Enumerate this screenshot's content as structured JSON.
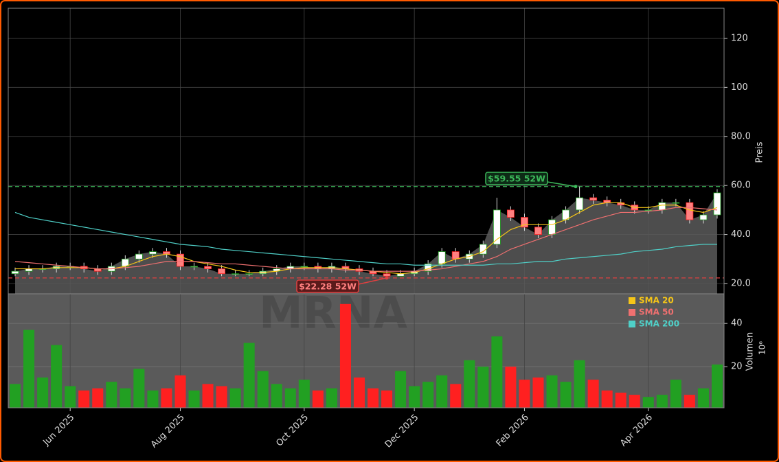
{
  "chart_data": {
    "type": "candlestick",
    "watermark": "MRNA",
    "y_label": "Preis",
    "y2_label": "Volumen",
    "y2_scale_label": "10⁶",
    "categories": [
      null,
      null,
      null,
      null,
      "Jun 2025",
      null,
      null,
      null,
      null,
      null,
      null,
      null,
      "Aug 2025",
      null,
      null,
      null,
      null,
      null,
      null,
      null,
      null,
      "Oct 2025",
      null,
      null,
      null,
      null,
      null,
      null,
      null,
      "Dec 2025",
      null,
      null,
      null,
      null,
      null,
      null,
      null,
      "Feb 2026",
      null,
      null,
      null,
      null,
      null,
      null,
      null,
      null,
      "Apr 2026",
      null,
      null,
      null,
      null,
      null
    ],
    "open": [
      24,
      25,
      26,
      26,
      27,
      27,
      26,
      25,
      27,
      30,
      32,
      33,
      32,
      27,
      27,
      26,
      24,
      24,
      24,
      25,
      26,
      27,
      27,
      26,
      27,
      26,
      25,
      24,
      23,
      24,
      25,
      28,
      33,
      30,
      32,
      36,
      50,
      47,
      43,
      40,
      46,
      50,
      55,
      54,
      53,
      52,
      50,
      50,
      53,
      53,
      46,
      48
    ],
    "high": [
      26.5,
      27.5,
      27.5,
      28.5,
      28.5,
      28.5,
      27.5,
      28.5,
      31.5,
      33.5,
      34.5,
      34.5,
      33.5,
      28.5,
      28.5,
      27.5,
      25.5,
      25.5,
      26.5,
      27.5,
      28.5,
      28.5,
      28.5,
      28.5,
      28.5,
      27.5,
      26.5,
      25.5,
      25.5,
      26.5,
      29.5,
      34.5,
      34.5,
      33.5,
      37.5,
      55,
      51.5,
      48.5,
      44.5,
      47.5,
      51.5,
      59.55,
      56.5,
      55.5,
      54.5,
      53.5,
      51.5,
      54.5,
      54.5,
      54.5,
      49.5,
      58.5
    ],
    "low": [
      23,
      23.5,
      24.5,
      24.5,
      25.5,
      24.5,
      23.5,
      23.5,
      25.5,
      28.5,
      30.5,
      30.5,
      25.5,
      25.5,
      24.5,
      23,
      23,
      23,
      23,
      23.5,
      24.5,
      25.5,
      24.5,
      24.5,
      24.5,
      23.5,
      23,
      22.28,
      23,
      23,
      23.5,
      26.5,
      28.5,
      28.5,
      30.5,
      34.5,
      45.5,
      41.5,
      38.5,
      38.5,
      44.5,
      48.5,
      52.5,
      51.5,
      50.5,
      48.5,
      48.5,
      48.5,
      51.5,
      44.5,
      44.5,
      46.5
    ],
    "close": [
      25,
      26,
      26,
      27,
      27,
      26,
      25,
      27,
      30,
      32,
      33,
      32,
      27,
      27,
      26,
      24,
      24,
      24,
      25,
      26,
      27,
      27,
      26,
      27,
      26,
      25,
      24,
      23,
      24,
      25,
      28,
      33,
      30,
      32,
      36,
      50,
      47,
      43,
      40,
      46,
      50,
      55,
      54,
      53,
      52,
      50,
      50,
      53,
      53,
      46,
      48,
      57
    ],
    "volume": [
      12,
      37,
      15,
      30,
      11,
      9,
      10,
      13,
      10,
      19,
      9,
      10,
      16,
      9,
      12,
      11,
      10,
      31,
      18,
      12,
      10,
      14,
      9,
      10,
      49,
      15,
      10,
      9,
      18,
      11,
      13,
      16,
      12,
      23,
      20,
      34,
      20,
      14,
      15,
      16,
      13,
      23,
      14,
      9,
      8,
      7,
      6,
      7,
      14,
      7,
      10,
      21
    ],
    "up_color": "#22a022",
    "down_color": "#ff2020",
    "area_color": "#5a5a5a",
    "series": [
      {
        "name": "SMA 20",
        "color": "#f5c518",
        "values": [
          26,
          26,
          26,
          26.5,
          26.5,
          26.5,
          26,
          26,
          27,
          29,
          31,
          32,
          31,
          29,
          28,
          27,
          25.5,
          24.5,
          24.5,
          25,
          26,
          26.5,
          26.5,
          26.5,
          26,
          25.5,
          25,
          24.5,
          24,
          24.5,
          26,
          28,
          30,
          31,
          33,
          38,
          42,
          44,
          44,
          44,
          46,
          49,
          52,
          53,
          53,
          51,
          51,
          52,
          52,
          50,
          49,
          51
        ]
      },
      {
        "name": "SMA 50",
        "color": "#f07070",
        "values": [
          29,
          28.5,
          28,
          27.5,
          27,
          26.5,
          26,
          26,
          26.5,
          27,
          28,
          29,
          29,
          29,
          28.5,
          28,
          28,
          27.5,
          27,
          26.5,
          26,
          26,
          26,
          26,
          25.5,
          25.5,
          25,
          25,
          25,
          25,
          25.5,
          26,
          27,
          28,
          29,
          31,
          34,
          36,
          38,
          40,
          42,
          44,
          46,
          47.5,
          49,
          49,
          49.5,
          50,
          51,
          51,
          50.5,
          50
        ]
      },
      {
        "name": "SMA 200",
        "color": "#4fd0c8",
        "values": [
          49,
          47,
          46,
          45,
          44,
          43,
          42,
          41,
          40,
          39,
          38,
          37,
          36,
          35.5,
          35,
          34,
          33.5,
          33,
          32.5,
          32,
          31.5,
          31,
          30.5,
          30,
          29.5,
          29,
          28.5,
          28,
          28,
          27.5,
          27.5,
          27.5,
          27.5,
          27.5,
          27.5,
          28,
          28,
          28.5,
          29,
          29,
          30,
          30.5,
          31,
          31.5,
          32,
          33,
          33.5,
          34,
          35,
          35.5,
          36,
          36
        ]
      }
    ],
    "annotations": [
      {
        "text": "$59.55 52W",
        "value": 59.55,
        "color": "#3cb95a"
      },
      {
        "text": "$22.28 52W",
        "value": 22.28,
        "color": "#e04040"
      }
    ],
    "ylim": [
      15.8,
      132.3
    ],
    "yticks": [
      {
        "value": 20,
        "label": "20.0"
      },
      {
        "value": 40,
        "label": "40.0"
      },
      {
        "value": 60,
        "label": "60.0"
      },
      {
        "value": 80,
        "label": "80.0"
      },
      100,
      120
    ],
    "y2lim": [
      1,
      53.7
    ],
    "y2ticks": [
      20,
      40
    ],
    "grid": true
  }
}
